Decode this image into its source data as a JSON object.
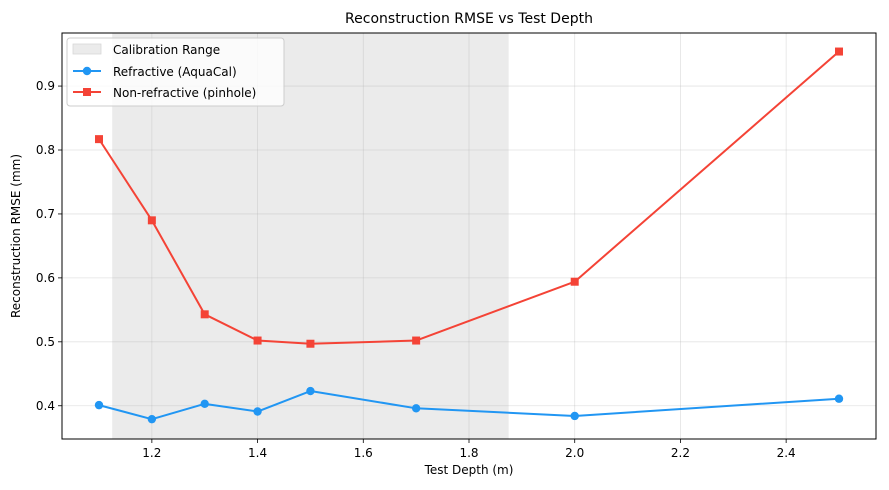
{
  "chart_data": {
    "type": "line",
    "title": "Reconstruction RMSE vs Test Depth",
    "xlabel": "Test Depth (m)",
    "ylabel": "Reconstruction RMSE (mm)",
    "xlim": [
      1.03,
      2.57
    ],
    "ylim": [
      0.348,
      0.983
    ],
    "xticks": [
      "1.2",
      "1.4",
      "1.6",
      "1.8",
      "2.0",
      "2.2",
      "2.4"
    ],
    "yticks": [
      "0.4",
      "0.5",
      "0.6",
      "0.7",
      "0.8",
      "0.9"
    ],
    "grid": true,
    "legend_position": "top-left",
    "shaded_region": {
      "name": "Calibration Range",
      "x_start": 1.125,
      "x_end": 1.875,
      "color": "#ebebeb"
    },
    "x": [
      1.1,
      1.2,
      1.3,
      1.4,
      1.5,
      1.7,
      2.0,
      2.5
    ],
    "series": [
      {
        "name": "Refractive (AquaCal)",
        "color": "#2196f3",
        "marker": "circle",
        "values": [
          0.401,
          0.379,
          0.403,
          0.391,
          0.423,
          0.396,
          0.384,
          0.411
        ]
      },
      {
        "name": "Non-refractive (pinhole)",
        "color": "#f44336",
        "marker": "square",
        "values": [
          0.817,
          0.69,
          0.543,
          0.502,
          0.497,
          0.502,
          0.594,
          0.954
        ]
      }
    ]
  }
}
